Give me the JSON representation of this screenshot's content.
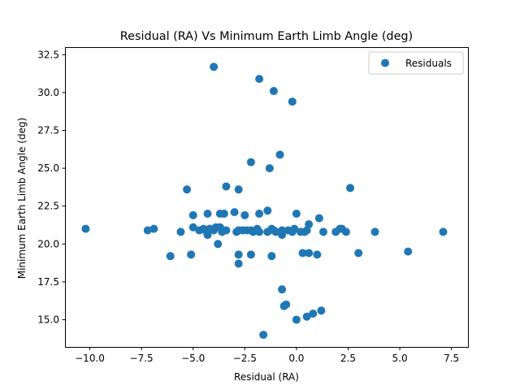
{
  "chart_data": {
    "type": "scatter",
    "title": "Residual (RA) Vs Minimum Earth Limb Angle (deg)",
    "xlabel": "Residual (RA)",
    "ylabel": "Minimum Earth Limb Angle (deg)",
    "xlim": [
      -11.2,
      8.3
    ],
    "ylim": [
      13.2,
      33.0
    ],
    "xticks": [
      -10.0,
      -7.5,
      -5.0,
      -2.5,
      0.0,
      2.5,
      5.0,
      7.5
    ],
    "xtick_labels": [
      "−10.0",
      "−7.5",
      "−5.0",
      "−2.5",
      "0.0",
      "2.5",
      "5.0",
      "7.5"
    ],
    "yticks": [
      15.0,
      17.5,
      20.0,
      22.5,
      25.0,
      27.5,
      30.0,
      32.5
    ],
    "ytick_labels": [
      "15.0",
      "17.5",
      "20.0",
      "22.5",
      "25.0",
      "27.5",
      "30.0",
      "32.5"
    ],
    "grid": false,
    "legend": {
      "position": "top-right",
      "entries": [
        "Residuals"
      ]
    },
    "series": [
      {
        "name": "Residuals",
        "color": "#1f77b4",
        "points": [
          [
            -10.2,
            21.0
          ],
          [
            -7.2,
            20.9
          ],
          [
            -6.9,
            21.0
          ],
          [
            -6.1,
            19.2
          ],
          [
            -5.6,
            20.8
          ],
          [
            -5.3,
            23.6
          ],
          [
            -5.1,
            19.3
          ],
          [
            -5.0,
            21.9
          ],
          [
            -5.0,
            21.1
          ],
          [
            -4.7,
            20.9
          ],
          [
            -4.5,
            21.0
          ],
          [
            -4.4,
            20.9
          ],
          [
            -4.3,
            20.6
          ],
          [
            -4.2,
            21.0
          ],
          [
            -4.3,
            22.0
          ],
          [
            -4.0,
            20.9
          ],
          [
            -3.9,
            21.1
          ],
          [
            -4.0,
            31.7
          ],
          [
            -3.8,
            20.0
          ],
          [
            -3.7,
            21.1
          ],
          [
            -3.7,
            22.0
          ],
          [
            -3.6,
            20.8
          ],
          [
            -3.5,
            22.0
          ],
          [
            -3.4,
            23.8
          ],
          [
            -3.4,
            20.9
          ],
          [
            -2.9,
            20.8
          ],
          [
            -3.0,
            22.1
          ],
          [
            -2.8,
            20.9
          ],
          [
            -2.8,
            23.6
          ],
          [
            -2.8,
            19.3
          ],
          [
            -2.8,
            18.7
          ],
          [
            -2.6,
            20.9
          ],
          [
            -2.5,
            21.9
          ],
          [
            -2.4,
            20.9
          ],
          [
            -2.2,
            20.9
          ],
          [
            -2.1,
            20.8
          ],
          [
            -2.2,
            19.3
          ],
          [
            -2.2,
            25.4
          ],
          [
            -1.9,
            21.0
          ],
          [
            -1.8,
            20.8
          ],
          [
            -1.8,
            22.0
          ],
          [
            -1.8,
            30.9
          ],
          [
            -1.6,
            14.0
          ],
          [
            -1.4,
            20.8
          ],
          [
            -1.4,
            22.2
          ],
          [
            -1.3,
            25.0
          ],
          [
            -1.2,
            19.2
          ],
          [
            -1.2,
            21.0
          ],
          [
            -1.1,
            20.9
          ],
          [
            -1.0,
            20.8
          ],
          [
            -1.1,
            30.1
          ],
          [
            -0.8,
            25.9
          ],
          [
            -0.7,
            20.9
          ],
          [
            -0.7,
            20.6
          ],
          [
            -0.7,
            17.0
          ],
          [
            -0.6,
            15.9
          ],
          [
            -0.5,
            16.0
          ],
          [
            -0.4,
            20.9
          ],
          [
            -0.2,
            20.8
          ],
          [
            -0.2,
            29.4
          ],
          [
            -0.1,
            21.0
          ],
          [
            0.0,
            22.0
          ],
          [
            0.0,
            15.0
          ],
          [
            0.2,
            20.8
          ],
          [
            0.3,
            19.4
          ],
          [
            0.4,
            20.8
          ],
          [
            0.5,
            15.2
          ],
          [
            0.5,
            20.9
          ],
          [
            0.6,
            21.3
          ],
          [
            0.6,
            19.4
          ],
          [
            0.8,
            15.4
          ],
          [
            1.0,
            19.3
          ],
          [
            1.1,
            21.7
          ],
          [
            1.2,
            15.6
          ],
          [
            1.3,
            20.8
          ],
          [
            1.9,
            20.8
          ],
          [
            2.1,
            21.0
          ],
          [
            2.2,
            21.0
          ],
          [
            2.4,
            20.8
          ],
          [
            2.6,
            23.7
          ],
          [
            3.0,
            19.4
          ],
          [
            3.8,
            20.8
          ],
          [
            5.4,
            19.5
          ],
          [
            7.1,
            20.8
          ]
        ]
      }
    ]
  }
}
